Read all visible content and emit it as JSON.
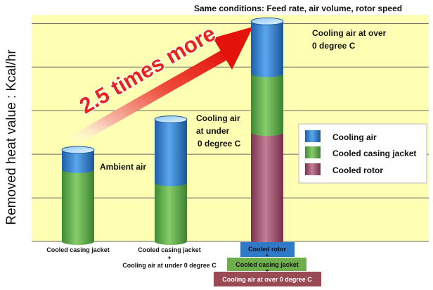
{
  "chart_data": {
    "type": "bar",
    "subtitle": "Same conditions: Feed rate, air volume, rotor speed",
    "ylabel": "Removed heat value : Kcal/hr",
    "categories": [
      [
        "Cooled casing jacket"
      ],
      [
        "Cooled casing jacket",
        "+",
        "Cooling air at under 0 degree C"
      ],
      [
        "Cooled rotor",
        "+",
        "Cooled casing jacket",
        "+",
        "Cooling air at over 0 degree C"
      ]
    ],
    "ylim": [
      0,
      5.2
    ],
    "stack_order": [
      "Cooled rotor",
      "Cooled casing jacket",
      "Cooling air"
    ],
    "series": [
      {
        "name": "Cooled rotor",
        "values": [
          0,
          0,
          2.5
        ]
      },
      {
        "name": "Cooled casing jacket",
        "values": [
          1.65,
          1.35,
          1.35
        ]
      },
      {
        "name": "Cooling air",
        "values": [
          0.45,
          1.45,
          1.2
        ]
      }
    ],
    "legend": {
      "position": "right",
      "entries": [
        "Cooling air",
        "Cooled casing jacket",
        "Cooled rotor"
      ]
    },
    "annotations": [
      {
        "text": "Ambient air"
      },
      {
        "text": [
          "Cooling air",
          "at under",
          "0 degree C"
        ]
      },
      {
        "text": [
          "Cooling air at over",
          "0 degree C"
        ]
      },
      {
        "text": "2.5 times more"
      }
    ],
    "colors": {
      "cooling_air": "#2f79c8",
      "cooled_casing_jacket": "#5fae4a",
      "cooled_rotor": "#a0526c",
      "plot_background": "#ffffb4",
      "arrow": "#e8231a"
    }
  }
}
